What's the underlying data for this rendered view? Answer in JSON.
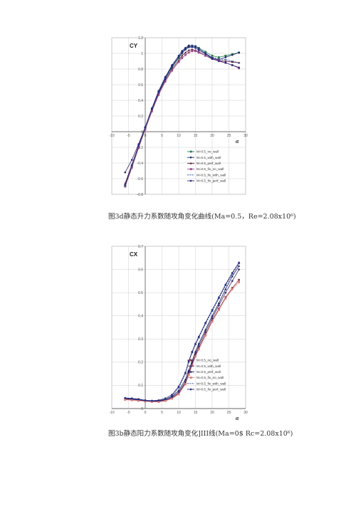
{
  "captions": {
    "cy": "图3d静态升力系数随攻角变化曲线(Ma=0.5，Re=2.08x10⁶)",
    "cx": "图3b静态阳力系数随攻角变化]III线(Ma=0$ Rc=2.08x10⁶)"
  },
  "chart_data": [
    {
      "type": "line",
      "ylabel": "CY",
      "xlabel": "α",
      "xlim": [
        -10,
        30
      ],
      "ylim": [
        -0.8,
        1.2
      ],
      "xticks": [
        "-10",
        "-5",
        "0",
        "5",
        "10",
        "15",
        "20",
        "25",
        "30"
      ],
      "yticks": [
        "1.2",
        "1",
        "0.8",
        "0.6",
        "0.4",
        "0.2",
        "0",
        "-0.2",
        "-0.4",
        "-0.6",
        "-0.8"
      ],
      "grid": true,
      "legend_position": "bottom-right",
      "x": [
        -6,
        -4,
        -2,
        0,
        2,
        4,
        6,
        8,
        10,
        11,
        12,
        13,
        14,
        15,
        16,
        18,
        20,
        22,
        24,
        26,
        28
      ],
      "series": [
        {
          "name": "M=0.5_no_wall",
          "color": "#2e7d4f",
          "marker": "square",
          "values": [
            -0.7,
            -0.45,
            -0.2,
            0.05,
            0.28,
            0.5,
            0.68,
            0.82,
            0.94,
            1.0,
            1.05,
            1.08,
            1.09,
            1.09,
            1.07,
            1.02,
            0.97,
            0.95,
            0.97,
            0.99,
            1.01
          ]
        },
        {
          "name": "M=0.5_with_wall",
          "color": "#1a2a6c",
          "marker": "diamond",
          "values": [
            -0.68,
            -0.43,
            -0.18,
            0.06,
            0.3,
            0.52,
            0.7,
            0.85,
            0.97,
            1.03,
            1.07,
            1.1,
            1.1,
            1.09,
            1.06,
            1.0,
            0.94,
            0.92,
            0.95,
            0.98,
            1.01
          ]
        },
        {
          "name": "M=0.5_perf_wall",
          "color": "#5a1a3a",
          "marker": "triangle",
          "values": [
            -0.66,
            -0.42,
            -0.18,
            0.05,
            0.28,
            0.49,
            0.66,
            0.8,
            0.91,
            0.97,
            1.01,
            1.04,
            1.05,
            1.04,
            1.02,
            0.97,
            0.93,
            0.91,
            0.9,
            0.89,
            0.88
          ]
        },
        {
          "name": "M=0.5_fix_no_wall",
          "color": "#9c4a8a",
          "marker": "square",
          "values": [
            -0.7,
            -0.46,
            -0.21,
            0.03,
            0.26,
            0.47,
            0.64,
            0.78,
            0.89,
            0.94,
            0.98,
            1.01,
            1.03,
            1.03,
            1.01,
            0.97,
            0.93,
            0.91,
            0.88,
            0.85,
            0.81
          ]
        },
        {
          "name": "M=0.5_fix_with_wall",
          "color": "#1f3f8f",
          "marker": "dash",
          "values": [
            -0.69,
            -0.44,
            -0.19,
            0.05,
            0.29,
            0.51,
            0.69,
            0.84,
            0.95,
            1.01,
            1.06,
            1.09,
            1.1,
            1.09,
            1.06,
            1.0,
            0.95,
            0.93,
            0.92,
            0.9,
            0.88
          ]
        },
        {
          "name": "M=0.5_fix_perf_wall",
          "color": "#2a2a7a",
          "marker": "circle",
          "values": [
            -0.52,
            -0.36,
            -0.16,
            0.06,
            0.29,
            0.5,
            0.68,
            0.83,
            0.95,
            1.01,
            1.05,
            1.08,
            1.08,
            1.07,
            1.04,
            0.99,
            0.93,
            0.9,
            0.88,
            0.85,
            0.82
          ]
        }
      ]
    },
    {
      "type": "line",
      "ylabel": "CX",
      "xlabel": "α",
      "xlim": [
        -10,
        30
      ],
      "ylim": [
        0,
        0.7
      ],
      "xticks": [
        "-10",
        "-5",
        "0",
        "5",
        "10",
        "15",
        "20",
        "25",
        "30"
      ],
      "yticks": [
        "0.7",
        "0.6",
        "0.5",
        "0.4",
        "0.3",
        "0.2",
        "0.1",
        "0"
      ],
      "grid": true,
      "legend_position": "bottom-right",
      "x": [
        -6,
        -4,
        -2,
        0,
        2,
        4,
        6,
        8,
        10,
        12,
        13,
        14,
        15,
        16,
        18,
        20,
        22,
        24,
        26,
        28
      ],
      "series": [
        {
          "name": "M=0.5_no_wall",
          "color": "#8b3a4a",
          "marker": "square",
          "values": [
            0.04,
            0.038,
            0.036,
            0.032,
            0.03,
            0.03,
            0.035,
            0.045,
            0.065,
            0.11,
            0.15,
            0.19,
            0.23,
            0.26,
            0.32,
            0.38,
            0.43,
            0.48,
            0.52,
            0.555
          ]
        },
        {
          "name": "M=0.5_with_wall",
          "color": "#3a2a6a",
          "marker": "diamond",
          "values": [
            0.042,
            0.04,
            0.037,
            0.033,
            0.031,
            0.032,
            0.037,
            0.048,
            0.07,
            0.115,
            0.155,
            0.195,
            0.235,
            0.27,
            0.33,
            0.39,
            0.445,
            0.5,
            0.55,
            0.6
          ]
        },
        {
          "name": "M=0.5_perf_wall",
          "color": "#1a1a5a",
          "marker": "triangle",
          "values": [
            0.045,
            0.043,
            0.04,
            0.035,
            0.033,
            0.034,
            0.04,
            0.052,
            0.078,
            0.125,
            0.165,
            0.205,
            0.245,
            0.28,
            0.34,
            0.4,
            0.455,
            0.515,
            0.57,
            0.615
          ]
        },
        {
          "name": "M=0.5_fix_no_wall",
          "color": "#e07a7a",
          "marker": "square",
          "values": [
            0.038,
            0.036,
            0.034,
            0.031,
            0.029,
            0.029,
            0.033,
            0.043,
            0.062,
            0.105,
            0.145,
            0.185,
            0.225,
            0.255,
            0.315,
            0.375,
            0.425,
            0.475,
            0.515,
            0.545
          ]
        },
        {
          "name": "M=0.5_fix_with_wall",
          "color": "#1f3f8f",
          "marker": "dash",
          "values": [
            0.044,
            0.041,
            0.038,
            0.034,
            0.032,
            0.033,
            0.039,
            0.055,
            0.09,
            0.15,
            0.2,
            0.24,
            0.275,
            0.305,
            0.365,
            0.42,
            0.475,
            0.53,
            0.58,
            0.625
          ]
        },
        {
          "name": "M=0.5_fix_perf_wall",
          "color": "#2a2a7a",
          "marker": "circle",
          "values": [
            0.046,
            0.044,
            0.041,
            0.036,
            0.034,
            0.036,
            0.044,
            0.06,
            0.095,
            0.155,
            0.205,
            0.245,
            0.28,
            0.31,
            0.37,
            0.425,
            0.48,
            0.535,
            0.585,
            0.63
          ]
        }
      ]
    }
  ]
}
